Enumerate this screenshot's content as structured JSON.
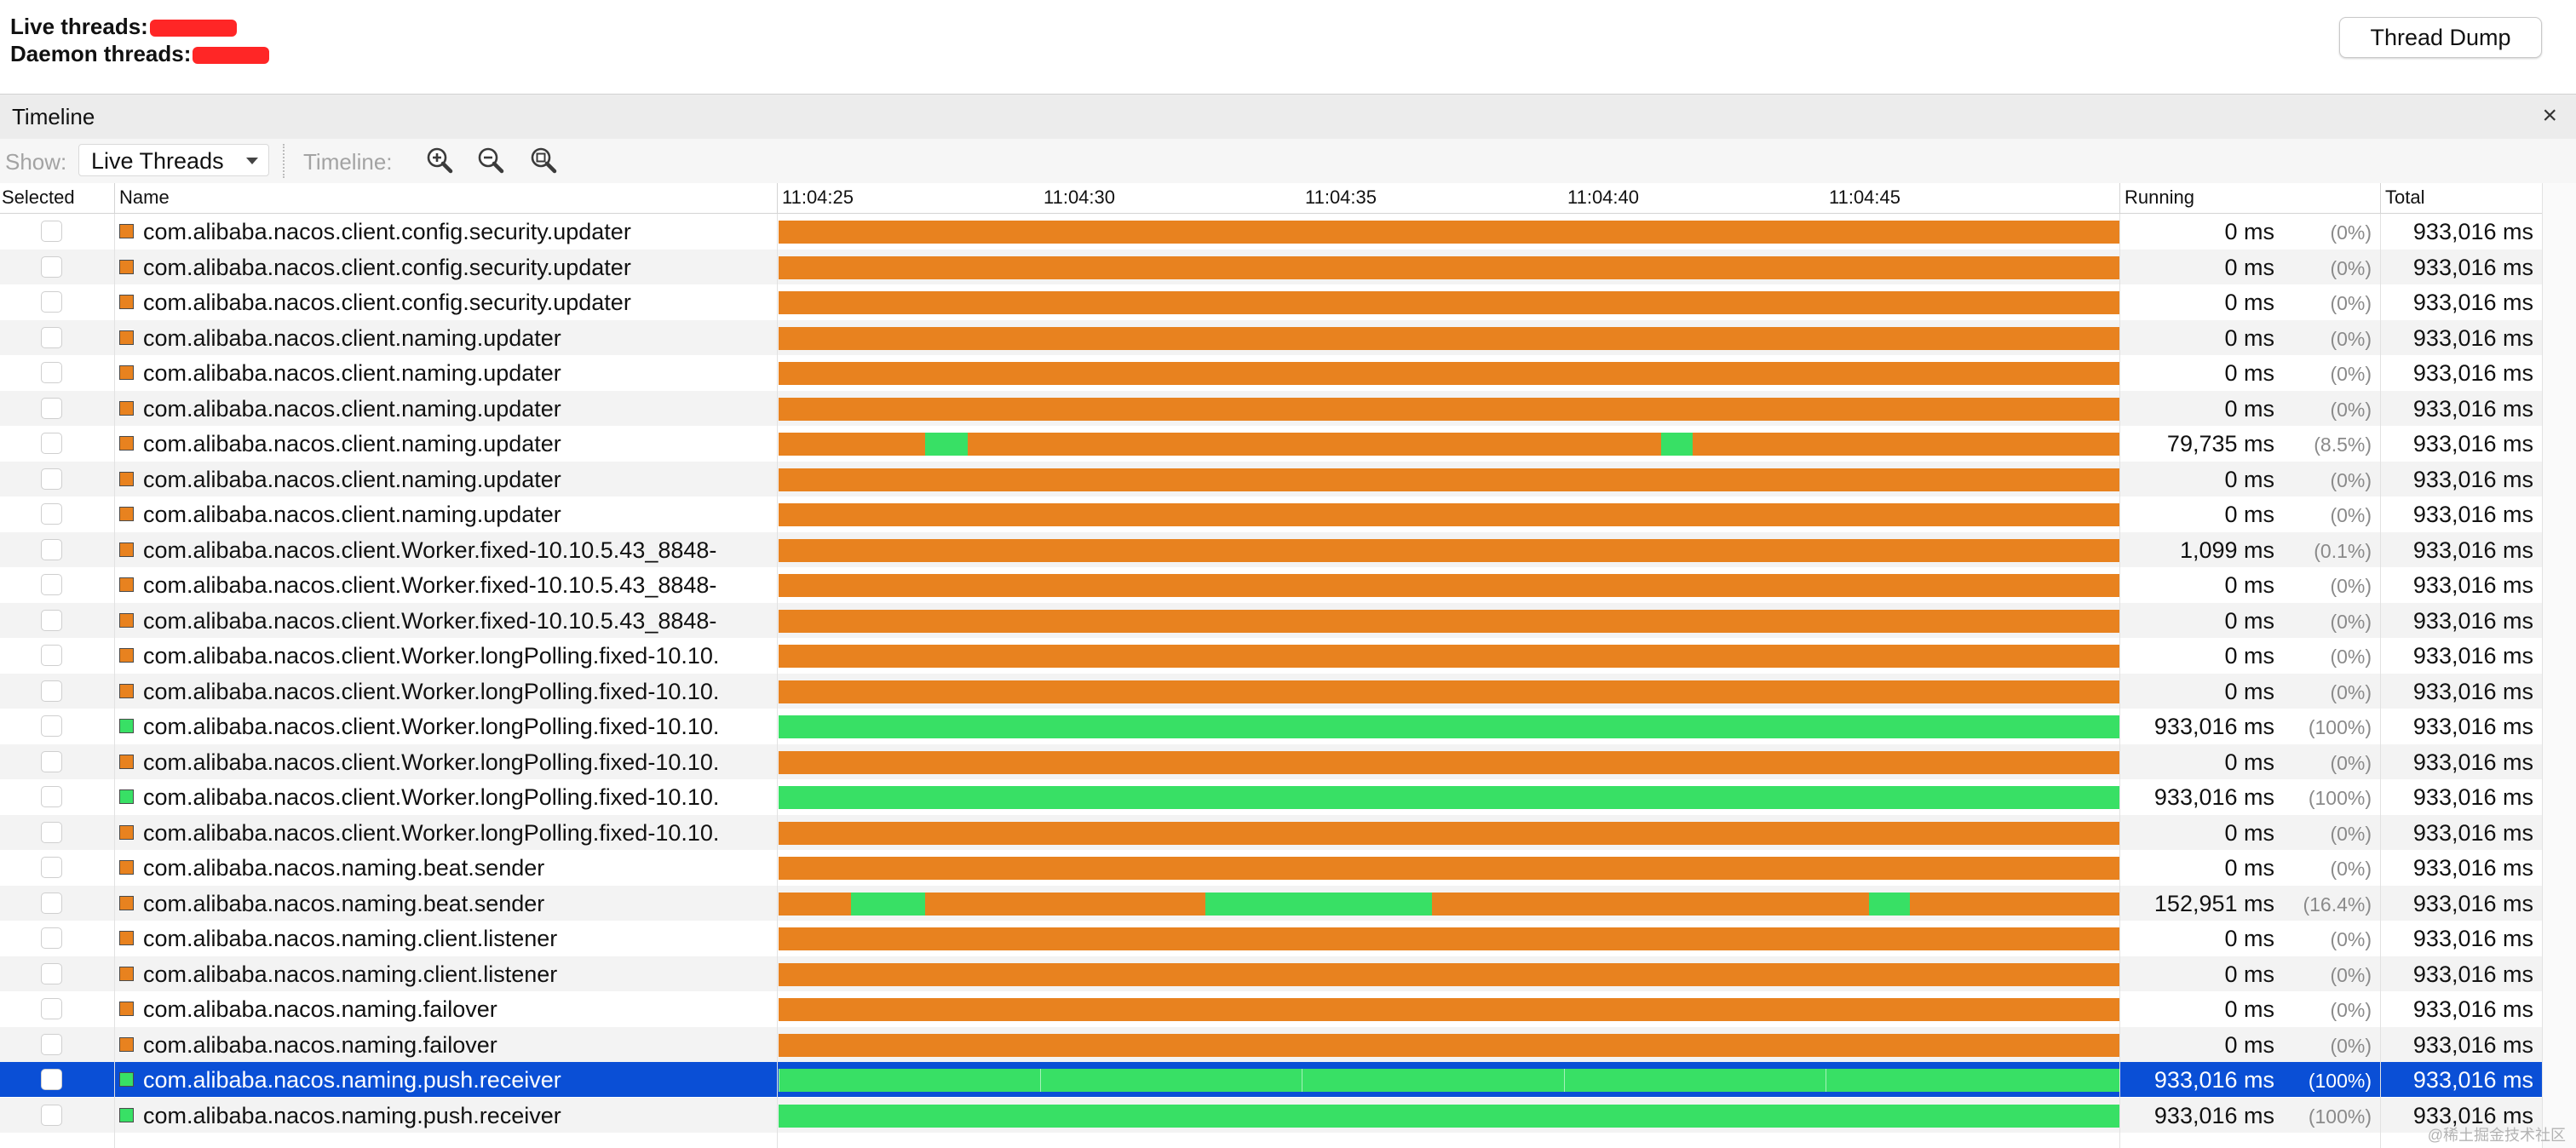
{
  "header": {
    "live_threads_label": "Live threads:",
    "daemon_threads_label": "Daemon threads:",
    "thread_dump_label": "Thread Dump"
  },
  "tabbar": {
    "title": "Timeline",
    "close_glyph": "×"
  },
  "toolbar": {
    "show_label": "Show:",
    "show_value": "Live Threads",
    "timeline_label": "Timeline:",
    "icons": [
      "zoom-in-icon",
      "zoom-out-icon",
      "zoom-fit-icon"
    ]
  },
  "columns": {
    "selected": "Selected",
    "name": "Name",
    "running": "Running",
    "total": "Total"
  },
  "timeline_ticks": [
    "11:04:25",
    "11:04:30",
    "11:04:35",
    "11:04:40",
    "11:04:45"
  ],
  "colors": {
    "waiting": "#e8821f",
    "running": "#38e065",
    "selected_row": "#0a4fd6",
    "redaction": "#ff2626"
  },
  "threads": [
    {
      "name": "com.alibaba.nacos.client.config.security.updater",
      "running": "0 ms",
      "pct": "(0%)",
      "total": "933,016 ms",
      "state": "waiting",
      "segments": [],
      "selected": false
    },
    {
      "name": "com.alibaba.nacos.client.config.security.updater",
      "running": "0 ms",
      "pct": "(0%)",
      "total": "933,016 ms",
      "state": "waiting",
      "segments": [],
      "selected": false
    },
    {
      "name": "com.alibaba.nacos.client.config.security.updater",
      "running": "0 ms",
      "pct": "(0%)",
      "total": "933,016 ms",
      "state": "waiting",
      "segments": [],
      "selected": false
    },
    {
      "name": "com.alibaba.nacos.client.naming.updater",
      "running": "0 ms",
      "pct": "(0%)",
      "total": "933,016 ms",
      "state": "waiting",
      "segments": [],
      "selected": false
    },
    {
      "name": "com.alibaba.nacos.client.naming.updater",
      "running": "0 ms",
      "pct": "(0%)",
      "total": "933,016 ms",
      "state": "waiting",
      "segments": [],
      "selected": false
    },
    {
      "name": "com.alibaba.nacos.client.naming.updater",
      "running": "0 ms",
      "pct": "(0%)",
      "total": "933,016 ms",
      "state": "waiting",
      "segments": [],
      "selected": false
    },
    {
      "name": "com.alibaba.nacos.client.naming.updater",
      "running": "79,735 ms",
      "pct": "(8.5%)",
      "total": "933,016 ms",
      "state": "waiting",
      "segments": [
        [
          0.109,
          0.141
        ],
        [
          0.658,
          0.682
        ]
      ],
      "selected": false
    },
    {
      "name": "com.alibaba.nacos.client.naming.updater",
      "running": "0 ms",
      "pct": "(0%)",
      "total": "933,016 ms",
      "state": "waiting",
      "segments": [],
      "selected": false
    },
    {
      "name": "com.alibaba.nacos.client.naming.updater",
      "running": "0 ms",
      "pct": "(0%)",
      "total": "933,016 ms",
      "state": "waiting",
      "segments": [],
      "selected": false
    },
    {
      "name": "com.alibaba.nacos.client.Worker.fixed-10.10.5.43_8848-",
      "running": "1,099 ms",
      "pct": "(0.1%)",
      "total": "933,016 ms",
      "state": "waiting",
      "segments": [],
      "selected": false
    },
    {
      "name": "com.alibaba.nacos.client.Worker.fixed-10.10.5.43_8848-",
      "running": "0 ms",
      "pct": "(0%)",
      "total": "933,016 ms",
      "state": "waiting",
      "segments": [],
      "selected": false
    },
    {
      "name": "com.alibaba.nacos.client.Worker.fixed-10.10.5.43_8848-",
      "running": "0 ms",
      "pct": "(0%)",
      "total": "933,016 ms",
      "state": "waiting",
      "segments": [],
      "selected": false
    },
    {
      "name": "com.alibaba.nacos.client.Worker.longPolling.fixed-10.10.",
      "running": "0 ms",
      "pct": "(0%)",
      "total": "933,016 ms",
      "state": "waiting",
      "segments": [],
      "selected": false
    },
    {
      "name": "com.alibaba.nacos.client.Worker.longPolling.fixed-10.10.",
      "running": "0 ms",
      "pct": "(0%)",
      "total": "933,016 ms",
      "state": "waiting",
      "segments": [],
      "selected": false
    },
    {
      "name": "com.alibaba.nacos.client.Worker.longPolling.fixed-10.10.",
      "running": "933,016 ms",
      "pct": "(100%)",
      "total": "933,016 ms",
      "state": "running",
      "segments": [],
      "selected": false
    },
    {
      "name": "com.alibaba.nacos.client.Worker.longPolling.fixed-10.10.",
      "running": "0 ms",
      "pct": "(0%)",
      "total": "933,016 ms",
      "state": "waiting",
      "segments": [],
      "selected": false
    },
    {
      "name": "com.alibaba.nacos.client.Worker.longPolling.fixed-10.10.",
      "running": "933,016 ms",
      "pct": "(100%)",
      "total": "933,016 ms",
      "state": "running",
      "segments": [],
      "selected": false
    },
    {
      "name": "com.alibaba.nacos.client.Worker.longPolling.fixed-10.10.",
      "running": "0 ms",
      "pct": "(0%)",
      "total": "933,016 ms",
      "state": "waiting",
      "segments": [],
      "selected": false
    },
    {
      "name": "com.alibaba.nacos.naming.beat.sender",
      "running": "0 ms",
      "pct": "(0%)",
      "total": "933,016 ms",
      "state": "waiting",
      "segments": [],
      "selected": false
    },
    {
      "name": "com.alibaba.nacos.naming.beat.sender",
      "running": "152,951 ms",
      "pct": "(16.4%)",
      "total": "933,016 ms",
      "state": "waiting",
      "segments": [
        [
          0.054,
          0.109
        ],
        [
          0.318,
          0.487
        ],
        [
          0.813,
          0.844
        ]
      ],
      "selected": false
    },
    {
      "name": "com.alibaba.nacos.naming.client.listener",
      "running": "0 ms",
      "pct": "(0%)",
      "total": "933,016 ms",
      "state": "waiting",
      "segments": [],
      "selected": false
    },
    {
      "name": "com.alibaba.nacos.naming.client.listener",
      "running": "0 ms",
      "pct": "(0%)",
      "total": "933,016 ms",
      "state": "waiting",
      "segments": [],
      "selected": false
    },
    {
      "name": "com.alibaba.nacos.naming.failover",
      "running": "0 ms",
      "pct": "(0%)",
      "total": "933,016 ms",
      "state": "waiting",
      "segments": [],
      "selected": false
    },
    {
      "name": "com.alibaba.nacos.naming.failover",
      "running": "0 ms",
      "pct": "(0%)",
      "total": "933,016 ms",
      "state": "waiting",
      "segments": [],
      "selected": false
    },
    {
      "name": "com.alibaba.nacos.naming.push.receiver",
      "running": "933,016 ms",
      "pct": "(100%)",
      "total": "933,016 ms",
      "state": "running",
      "segments": [],
      "selected": true
    },
    {
      "name": "com.alibaba.nacos.naming.push.receiver",
      "running": "933,016 ms",
      "pct": "(100%)",
      "total": "933,016 ms",
      "state": "running",
      "segments": [],
      "selected": false
    }
  ],
  "watermark": "@稀土掘金技术社区"
}
